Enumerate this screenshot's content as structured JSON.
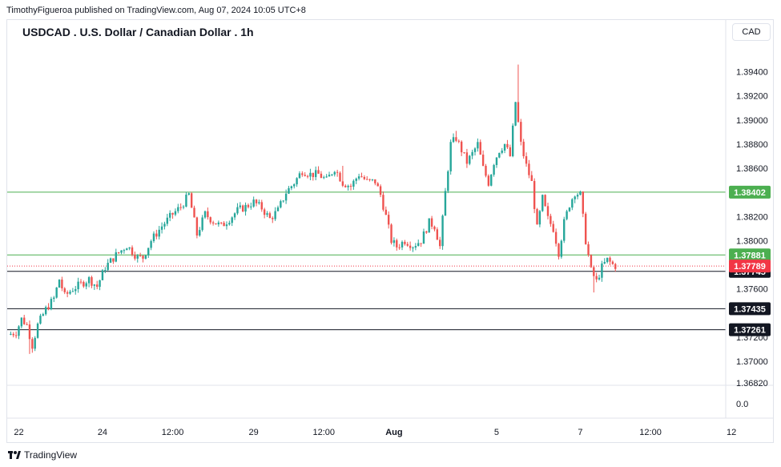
{
  "header": {
    "publish_line": "TimothyFigueroa published on TradingView.com, Aug 07, 2024 10:05 UTC+8",
    "title": "USDCAD . U.S. Dollar / Canadian Dollar . 1h",
    "currency": "CAD"
  },
  "footer": {
    "brand": "TradingView"
  },
  "colors": {
    "up": "#26a69a",
    "down": "#ef5350",
    "level_green": "#4caf50",
    "level_black": "#131722",
    "last_price": "#f23645"
  },
  "chart_data": {
    "type": "candlestick",
    "symbol": "USDCAD",
    "interval": "1h",
    "ylim": [
      1.3682,
      1.3961
    ],
    "y_ticks": [
      "1.39400",
      "1.39200",
      "1.39000",
      "1.38800",
      "1.38600",
      "1.38200",
      "1.38000",
      "1.37600",
      "1.37200",
      "1.37000",
      "1.36820"
    ],
    "y_extra_ticks": [
      "0.0"
    ],
    "x_ticks": [
      {
        "label": "22",
        "i": 4
      },
      {
        "label": "24",
        "i": 35
      },
      {
        "label": "12:00",
        "i": 61
      },
      {
        "label": "29",
        "i": 91
      },
      {
        "label": "12:00",
        "i": 117
      },
      {
        "label": "Aug",
        "i": 143
      },
      {
        "label": "5",
        "i": 181
      },
      {
        "label": "7",
        "i": 212
      },
      {
        "label": "12:00",
        "i": 238
      },
      {
        "label": "12",
        "i": 268
      }
    ],
    "levels": [
      {
        "value": 1.38402,
        "label": "1.38402",
        "kind": "green"
      },
      {
        "value": 1.37881,
        "label": "1.37881",
        "kind": "green"
      },
      {
        "value": 1.37745,
        "label": "1.37745",
        "kind": "black"
      },
      {
        "value": 1.37435,
        "label": "1.37435",
        "kind": "black"
      },
      {
        "value": 1.37261,
        "label": "1.37261",
        "kind": "black"
      }
    ],
    "last_price": {
      "value": 1.37789,
      "label": "1.37789"
    },
    "keypoints": [
      [
        0,
        1.3722
      ],
      [
        3,
        1.3724
      ],
      [
        5,
        1.3735
      ],
      [
        7,
        1.373
      ],
      [
        9,
        1.3713
      ],
      [
        11,
        1.373
      ],
      [
        14,
        1.3743
      ],
      [
        17,
        1.3752
      ],
      [
        19,
        1.3768
      ],
      [
        21,
        1.3754
      ],
      [
        24,
        1.376
      ],
      [
        27,
        1.3764
      ],
      [
        30,
        1.3768
      ],
      [
        33,
        1.3762
      ],
      [
        36,
        1.3778
      ],
      [
        40,
        1.3788
      ],
      [
        44,
        1.3796
      ],
      [
        48,
        1.3786
      ],
      [
        50,
        1.3786
      ],
      [
        53,
        1.38
      ],
      [
        57,
        1.3812
      ],
      [
        61,
        1.3822
      ],
      [
        64,
        1.3828
      ],
      [
        67,
        1.3838
      ],
      [
        70,
        1.3805
      ],
      [
        73,
        1.3822
      ],
      [
        76,
        1.3816
      ],
      [
        79,
        1.3812
      ],
      [
        82,
        1.3818
      ],
      [
        85,
        1.3825
      ],
      [
        88,
        1.3828
      ],
      [
        91,
        1.3832
      ],
      [
        94,
        1.3827
      ],
      [
        97,
        1.3818
      ],
      [
        100,
        1.3825
      ],
      [
        103,
        1.384
      ],
      [
        106,
        1.3848
      ],
      [
        109,
        1.3858
      ],
      [
        112,
        1.3855
      ],
      [
        115,
        1.3855
      ],
      [
        118,
        1.385
      ],
      [
        121,
        1.386
      ],
      [
        124,
        1.3848
      ],
      [
        127,
        1.3845
      ],
      [
        130,
        1.3855
      ],
      [
        133,
        1.3849
      ],
      [
        136,
        1.3849
      ],
      [
        138,
        1.3838
      ],
      [
        140,
        1.382
      ],
      [
        142,
        1.38
      ],
      [
        144,
        1.3795
      ],
      [
        147,
        1.38
      ],
      [
        150,
        1.3796
      ],
      [
        153,
        1.38
      ],
      [
        156,
        1.3815
      ],
      [
        158,
        1.3812
      ],
      [
        160,
        1.3795
      ],
      [
        162,
        1.384
      ],
      [
        164,
        1.388
      ],
      [
        166,
        1.3885
      ],
      [
        168,
        1.3875
      ],
      [
        170,
        1.3865
      ],
      [
        172,
        1.3872
      ],
      [
        174,
        1.388
      ],
      [
        176,
        1.386
      ],
      [
        178,
        1.3848
      ],
      [
        180,
        1.3865
      ],
      [
        182,
        1.3875
      ],
      [
        184,
        1.388
      ],
      [
        186,
        1.387
      ],
      [
        188,
        1.3915
      ],
      [
        190,
        1.388
      ],
      [
        192,
        1.3862
      ],
      [
        194,
        1.3848
      ],
      [
        196,
        1.381
      ],
      [
        198,
        1.3835
      ],
      [
        200,
        1.3818
      ],
      [
        202,
        1.381
      ],
      [
        204,
        1.379
      ],
      [
        206,
        1.3815
      ],
      [
        208,
        1.383
      ],
      [
        210,
        1.384
      ],
      [
        212,
        1.3838
      ],
      [
        214,
        1.38
      ],
      [
        216,
        1.3775
      ],
      [
        218,
        1.3766
      ],
      [
        220,
        1.3778
      ],
      [
        222,
        1.3784
      ],
      [
        224,
        1.378
      ],
      [
        225,
        1.3779
      ]
    ]
  }
}
